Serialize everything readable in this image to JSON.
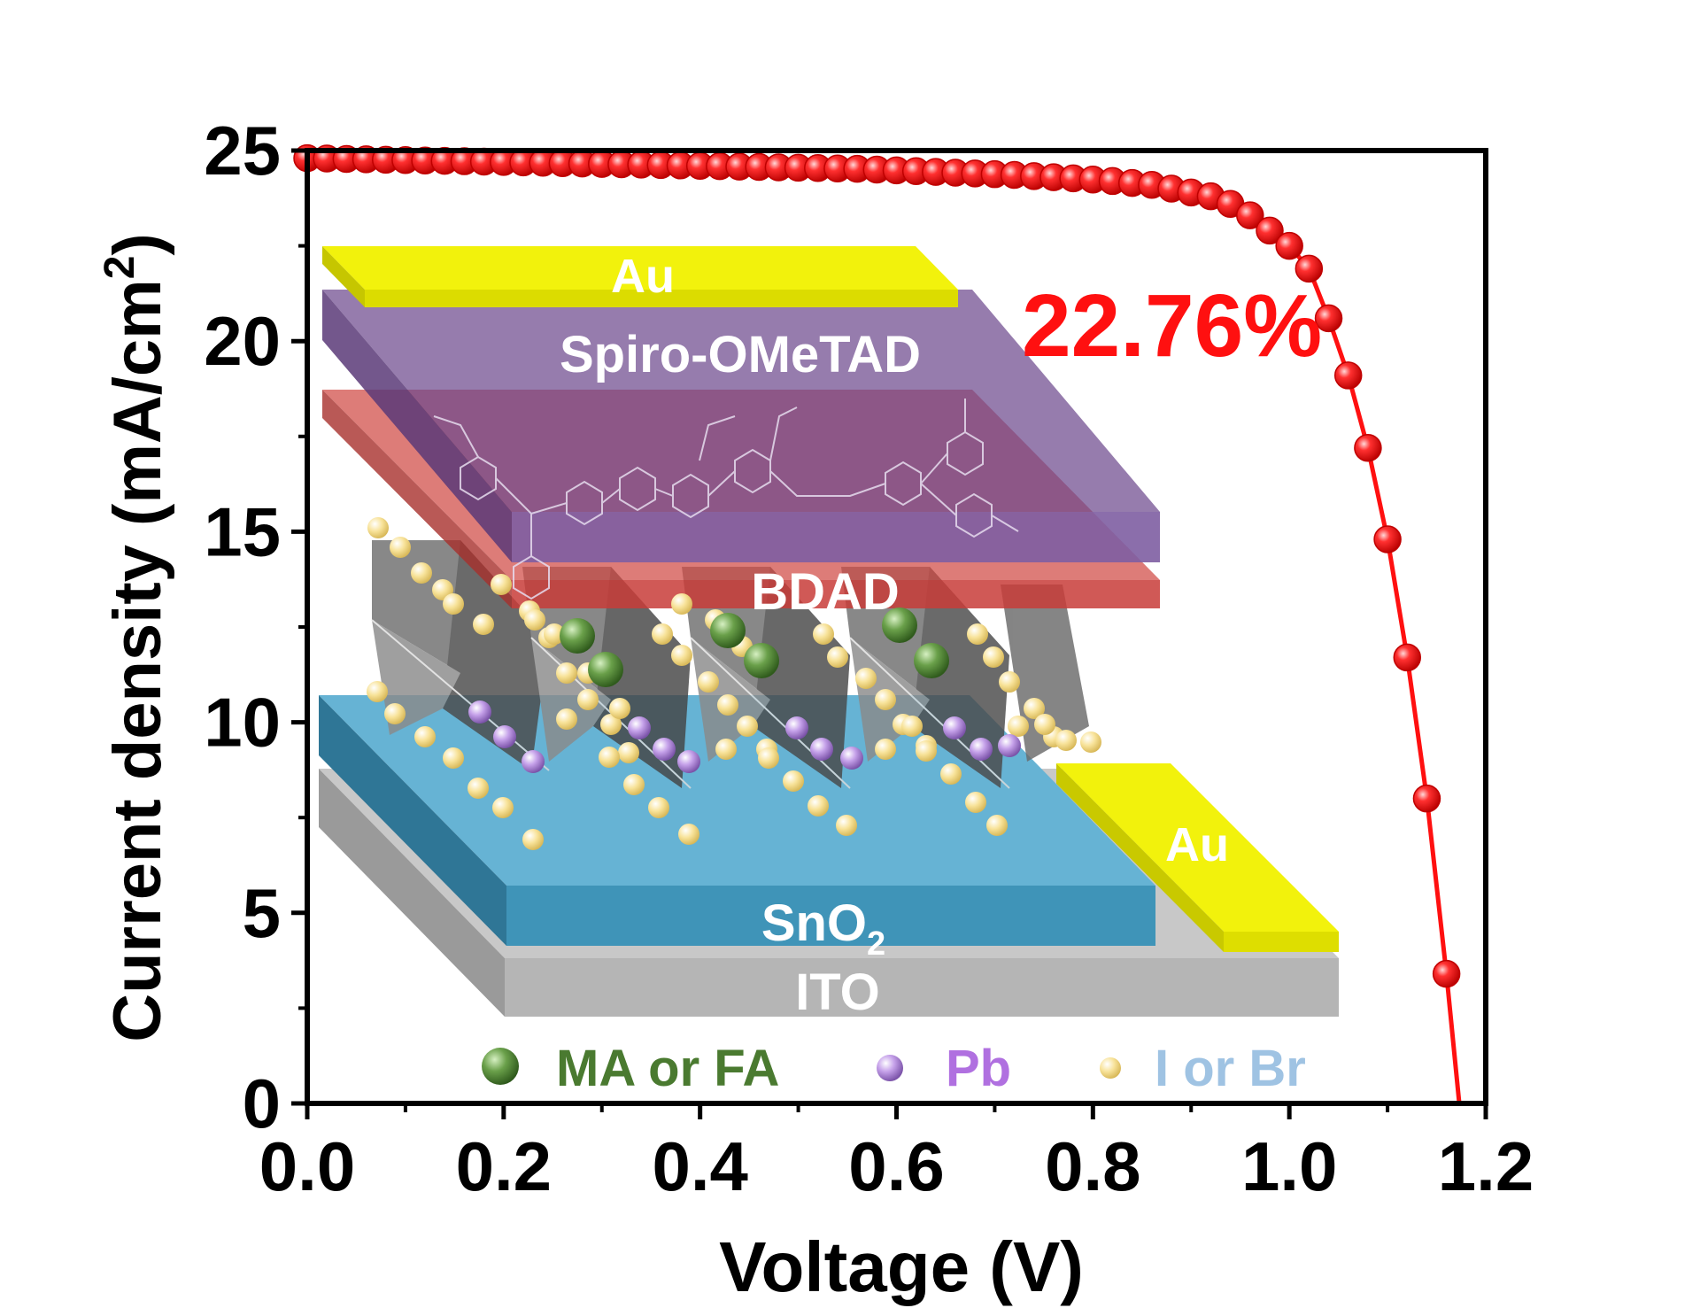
{
  "chart_data": {
    "type": "scatter",
    "title": "",
    "xlabel": "Voltage (V)",
    "ylabel": "Current density (mA/cm²)",
    "ylabel_main": "Current density (mA/cm",
    "ylabel_sup": "2",
    "ylabel_end": ")",
    "xlim": [
      0.0,
      1.2
    ],
    "ylim": [
      0,
      25
    ],
    "xticks": [
      "0.0",
      "0.2",
      "0.4",
      "0.6",
      "0.8",
      "1.0",
      "1.2"
    ],
    "yticks": [
      "0",
      "5",
      "10",
      "15",
      "20",
      "25"
    ],
    "grid": false,
    "annotation": "22.76%",
    "series": [
      {
        "color": "#ff1010",
        "x": [
          0.0,
          0.02,
          0.04,
          0.06,
          0.08,
          0.1,
          0.12,
          0.14,
          0.16,
          0.18,
          0.2,
          0.22,
          0.24,
          0.26,
          0.28,
          0.3,
          0.32,
          0.34,
          0.36,
          0.38,
          0.4,
          0.42,
          0.44,
          0.46,
          0.48,
          0.5,
          0.52,
          0.54,
          0.56,
          0.58,
          0.6,
          0.62,
          0.64,
          0.66,
          0.68,
          0.7,
          0.72,
          0.74,
          0.76,
          0.78,
          0.8,
          0.82,
          0.84,
          0.86,
          0.88,
          0.9,
          0.92,
          0.94,
          0.96,
          0.98,
          1.0,
          1.02,
          1.04,
          1.06,
          1.08,
          1.1,
          1.12,
          1.14,
          1.16
        ],
        "y": [
          24.8,
          24.79,
          24.78,
          24.77,
          24.76,
          24.75,
          24.74,
          24.73,
          24.72,
          24.71,
          24.7,
          24.69,
          24.68,
          24.67,
          24.66,
          24.65,
          24.64,
          24.63,
          24.62,
          24.61,
          24.6,
          24.59,
          24.58,
          24.57,
          24.56,
          24.55,
          24.54,
          24.53,
          24.52,
          24.5,
          24.48,
          24.46,
          24.44,
          24.42,
          24.4,
          24.38,
          24.36,
          24.33,
          24.3,
          24.27,
          24.24,
          24.2,
          24.15,
          24.1,
          24.0,
          23.9,
          23.8,
          23.6,
          23.3,
          22.9,
          22.5,
          21.9,
          20.6,
          19.1,
          17.2,
          14.8,
          11.7,
          8.0,
          3.4
        ]
      }
    ]
  },
  "inset": {
    "layer_au_top": "Au",
    "layer_spiro": "Spiro-OMeTAD",
    "layer_bdad": "BDAD",
    "layer_au_side": "Au",
    "layer_sno2_main": "SnO",
    "layer_sno2_sub": "2",
    "layer_ito": "ITO",
    "legend": [
      {
        "label": "MA or FA",
        "color": "#4a7a30"
      },
      {
        "label": "Pb",
        "color": "#b070e0"
      },
      {
        "label": "I or Br",
        "color": "#9fc3e3"
      }
    ],
    "colors": {
      "au": "#f2f20c",
      "spiro": "#7a4e92",
      "bdad": "#c8403a",
      "sno2": "#3f94b8",
      "ito": "#a5a5a5",
      "halide_atom": "#f6dc8e",
      "pb_atom": "#b28ad8",
      "cation_atom": "#5a8a3e"
    }
  }
}
